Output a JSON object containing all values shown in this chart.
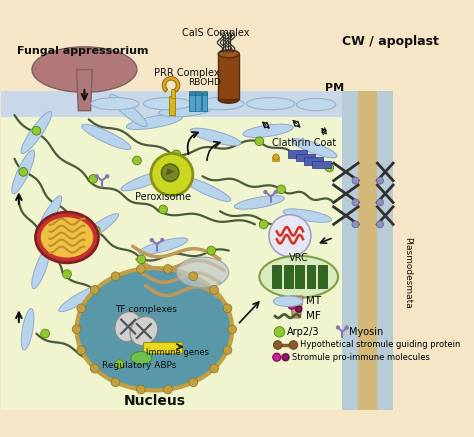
{
  "bg_outer": "#f5e6c8",
  "bg_cell": "#f0f5d0",
  "bg_pm_blue": "#c8d8e8",
  "bg_plasmo_tan": "#d4b87a",
  "bg_plasmo_strip": "#e8d4a0",
  "labels": {
    "fungal": "Fungal appressorium",
    "prr": "PRR Complex",
    "rbohd": "RBOHD",
    "cals": "CalS Complex",
    "cw": "CW / apoplast",
    "pm": "PM",
    "plasmodesmata": "Plasmodesmata",
    "peroxisome": "Peroxisome",
    "clathrin": "Clathrin Coat",
    "vrc": "VRC",
    "nucleus_label": "Nucleus",
    "tf": "TF complexes",
    "immune": "Immune genes",
    "reg": "Regulatory ABPs",
    "mt": "MT",
    "mf": "MF",
    "arp": "Arp2/3",
    "myosin": "Myosin",
    "hypothetical": "Hypothetical stromule guiding protein",
    "stromule": "Stromule pro-immune molecules"
  }
}
